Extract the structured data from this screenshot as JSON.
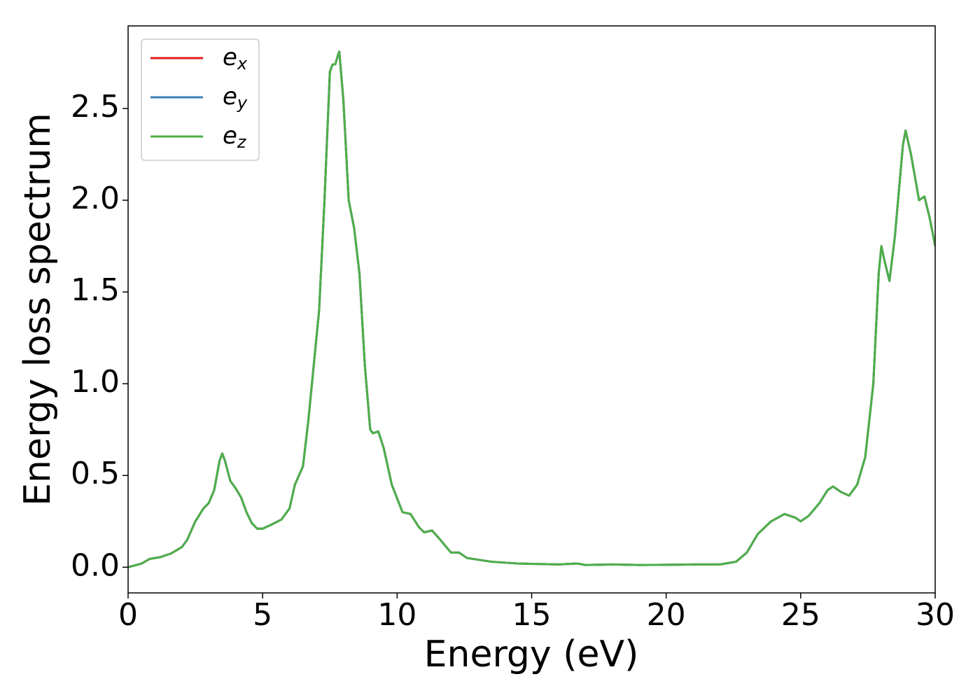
{
  "chart_data": {
    "type": "line",
    "xlabel": "Energy (eV)",
    "ylabel": "Energy loss spectrum",
    "x": [
      0,
      0.5,
      0.8,
      1.2,
      1.6,
      2.0,
      2.2,
      2.5,
      2.8,
      3.0,
      3.2,
      3.4,
      3.5,
      3.6,
      3.8,
      4.0,
      4.2,
      4.4,
      4.6,
      4.8,
      5.0,
      5.3,
      5.7,
      6.0,
      6.2,
      6.5,
      6.7,
      6.9,
      7.1,
      7.3,
      7.5,
      7.6,
      7.7,
      7.8,
      7.85,
      8.0,
      8.2,
      8.4,
      8.6,
      8.8,
      9.0,
      9.1,
      9.3,
      9.5,
      9.8,
      10.2,
      10.5,
      10.8,
      11.0,
      11.3,
      11.6,
      12.0,
      12.3,
      12.6,
      13.5,
      14.5,
      16,
      16.7,
      17,
      18,
      19,
      20,
      21,
      22,
      22.6,
      23,
      23.4,
      23.9,
      24.4,
      24.8,
      25.0,
      25.3,
      25.7,
      26.0,
      26.2,
      26.5,
      26.8,
      27.1,
      27.4,
      27.7,
      27.9,
      28.0,
      28.1,
      28.3,
      28.5,
      28.8,
      28.9,
      29.1,
      29.4,
      29.6,
      29.8,
      30.0
    ],
    "series": [
      {
        "name": "ex",
        "color": "#e41a1c",
        "values": [
          0.0,
          0.02,
          0.045,
          0.055,
          0.075,
          0.11,
          0.15,
          0.25,
          0.32,
          0.35,
          0.42,
          0.58,
          0.62,
          0.58,
          0.47,
          0.43,
          0.38,
          0.3,
          0.24,
          0.21,
          0.21,
          0.23,
          0.26,
          0.32,
          0.45,
          0.55,
          0.8,
          1.1,
          1.4,
          2.0,
          2.7,
          2.74,
          2.74,
          2.79,
          2.81,
          2.55,
          2.0,
          1.85,
          1.6,
          1.1,
          0.75,
          0.73,
          0.74,
          0.65,
          0.45,
          0.3,
          0.29,
          0.22,
          0.19,
          0.2,
          0.15,
          0.08,
          0.08,
          0.05,
          0.03,
          0.02,
          0.015,
          0.02,
          0.012,
          0.015,
          0.012,
          0.013,
          0.015,
          0.015,
          0.03,
          0.08,
          0.18,
          0.25,
          0.29,
          0.27,
          0.25,
          0.28,
          0.35,
          0.42,
          0.44,
          0.41,
          0.39,
          0.45,
          0.6,
          1.0,
          1.6,
          1.75,
          1.68,
          1.56,
          1.8,
          2.3,
          2.38,
          2.25,
          2.0,
          2.02,
          1.9,
          1.75
        ]
      },
      {
        "name": "ey",
        "color": "#377eb8",
        "values": [
          0.0,
          0.02,
          0.045,
          0.055,
          0.075,
          0.11,
          0.15,
          0.25,
          0.32,
          0.35,
          0.42,
          0.58,
          0.62,
          0.58,
          0.47,
          0.43,
          0.38,
          0.3,
          0.24,
          0.21,
          0.21,
          0.23,
          0.26,
          0.32,
          0.45,
          0.55,
          0.8,
          1.1,
          1.4,
          2.0,
          2.7,
          2.74,
          2.74,
          2.79,
          2.81,
          2.55,
          2.0,
          1.85,
          1.6,
          1.1,
          0.75,
          0.73,
          0.74,
          0.65,
          0.45,
          0.3,
          0.29,
          0.22,
          0.19,
          0.2,
          0.15,
          0.08,
          0.08,
          0.05,
          0.03,
          0.02,
          0.015,
          0.02,
          0.012,
          0.015,
          0.012,
          0.013,
          0.015,
          0.015,
          0.03,
          0.08,
          0.18,
          0.25,
          0.29,
          0.27,
          0.25,
          0.28,
          0.35,
          0.42,
          0.44,
          0.41,
          0.39,
          0.45,
          0.6,
          1.0,
          1.6,
          1.75,
          1.68,
          1.56,
          1.8,
          2.3,
          2.38,
          2.25,
          2.0,
          2.02,
          1.9,
          1.75
        ]
      },
      {
        "name": "ez",
        "color": "#4daf4a",
        "values": [
          0.0,
          0.02,
          0.045,
          0.055,
          0.075,
          0.11,
          0.15,
          0.25,
          0.32,
          0.35,
          0.42,
          0.58,
          0.62,
          0.58,
          0.47,
          0.43,
          0.38,
          0.3,
          0.24,
          0.21,
          0.21,
          0.23,
          0.26,
          0.32,
          0.45,
          0.55,
          0.8,
          1.1,
          1.4,
          2.0,
          2.7,
          2.74,
          2.74,
          2.79,
          2.81,
          2.55,
          2.0,
          1.85,
          1.6,
          1.1,
          0.75,
          0.73,
          0.74,
          0.65,
          0.45,
          0.3,
          0.29,
          0.22,
          0.19,
          0.2,
          0.15,
          0.08,
          0.08,
          0.05,
          0.03,
          0.02,
          0.015,
          0.02,
          0.012,
          0.015,
          0.012,
          0.013,
          0.015,
          0.015,
          0.03,
          0.08,
          0.18,
          0.25,
          0.29,
          0.27,
          0.25,
          0.28,
          0.35,
          0.42,
          0.44,
          0.41,
          0.39,
          0.45,
          0.6,
          1.0,
          1.6,
          1.75,
          1.68,
          1.56,
          1.8,
          2.3,
          2.38,
          2.25,
          2.0,
          2.02,
          1.9,
          1.75
        ]
      }
    ],
    "xlim": [
      0,
      30
    ],
    "xticks": [
      0,
      5,
      10,
      15,
      20,
      25,
      30
    ],
    "ylim": [
      -0.14,
      2.95
    ],
    "yticks": [
      {
        "value": 0,
        "label": "0.0"
      },
      0.5,
      {
        "value": 1,
        "label": "1.0"
      },
      1.5,
      {
        "value": 2,
        "label": "2.0"
      },
      2.5
    ],
    "legend": "upper left",
    "grid": false
  }
}
